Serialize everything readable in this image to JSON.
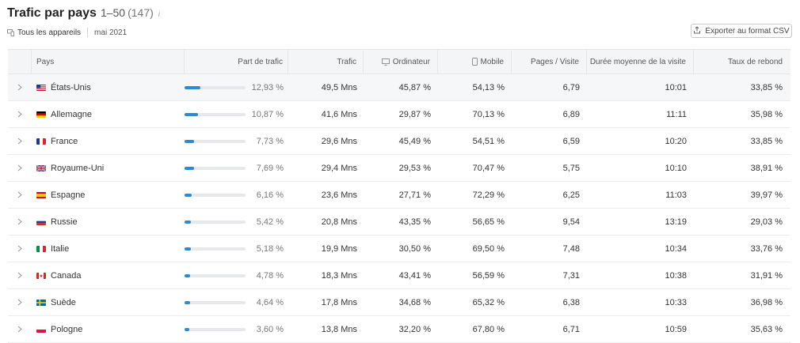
{
  "header": {
    "title": "Trafic par pays",
    "range": "1–50",
    "count": "(147)",
    "info_icon": "i",
    "device_filter": "Tous les appareils",
    "date": "mai 2021",
    "export_label": "Exporter au format CSV"
  },
  "columns": {
    "pays": "Pays",
    "part": "Part de trafic",
    "trafic": "Trafic",
    "ordinateur": "Ordinateur",
    "mobile": "Mobile",
    "pages": "Pages / Visite",
    "duree": "Durée moyenne de la visite",
    "rebond": "Taux de rebond"
  },
  "rows": [
    {
      "country": "États-Unis",
      "flag": "us",
      "share": "12,93 %",
      "share_pct": 12.93,
      "traffic": "49,5 Mns",
      "desktop": "45,87 %",
      "mobile": "54,13 %",
      "pages": "6,79",
      "duration": "10:01",
      "bounce": "33,85 %"
    },
    {
      "country": "Allemagne",
      "flag": "de",
      "share": "10,87 %",
      "share_pct": 10.87,
      "traffic": "41,6 Mns",
      "desktop": "29,87 %",
      "mobile": "70,13 %",
      "pages": "6,89",
      "duration": "11:11",
      "bounce": "35,98 %"
    },
    {
      "country": "France",
      "flag": "fr",
      "share": "7,73 %",
      "share_pct": 7.73,
      "traffic": "29,6 Mns",
      "desktop": "45,49 %",
      "mobile": "54,51 %",
      "pages": "6,59",
      "duration": "10:20",
      "bounce": "33,85 %"
    },
    {
      "country": "Royaume-Uni",
      "flag": "gb",
      "share": "7,69 %",
      "share_pct": 7.69,
      "traffic": "29,4 Mns",
      "desktop": "29,53 %",
      "mobile": "70,47 %",
      "pages": "5,75",
      "duration": "10:10",
      "bounce": "38,91 %"
    },
    {
      "country": "Espagne",
      "flag": "es",
      "share": "6,16 %",
      "share_pct": 6.16,
      "traffic": "23,6 Mns",
      "desktop": "27,71 %",
      "mobile": "72,29 %",
      "pages": "6,25",
      "duration": "11:03",
      "bounce": "39,97 %"
    },
    {
      "country": "Russie",
      "flag": "ru",
      "share": "5,42 %",
      "share_pct": 5.42,
      "traffic": "20,8 Mns",
      "desktop": "43,35 %",
      "mobile": "56,65 %",
      "pages": "9,54",
      "duration": "13:19",
      "bounce": "29,03 %"
    },
    {
      "country": "Italie",
      "flag": "it",
      "share": "5,18 %",
      "share_pct": 5.18,
      "traffic": "19,9 Mns",
      "desktop": "30,50 %",
      "mobile": "69,50 %",
      "pages": "7,48",
      "duration": "10:34",
      "bounce": "33,76 %"
    },
    {
      "country": "Canada",
      "flag": "ca",
      "share": "4,78 %",
      "share_pct": 4.78,
      "traffic": "18,3 Mns",
      "desktop": "43,41 %",
      "mobile": "56,59 %",
      "pages": "7,31",
      "duration": "10:38",
      "bounce": "31,91 %"
    },
    {
      "country": "Suède",
      "flag": "se",
      "share": "4,64 %",
      "share_pct": 4.64,
      "traffic": "17,8 Mns",
      "desktop": "34,68 %",
      "mobile": "65,32 %",
      "pages": "6,38",
      "duration": "10:33",
      "bounce": "36,98 %"
    },
    {
      "country": "Pologne",
      "flag": "pl",
      "share": "3,60 %",
      "share_pct": 3.6,
      "traffic": "13,8 Mns",
      "desktop": "32,20 %",
      "mobile": "67,80 %",
      "pages": "6,71",
      "duration": "10:59",
      "bounce": "35,63 %"
    }
  ],
  "icons": {
    "expand": "chevron-right-icon",
    "device": "devices-icon",
    "export": "export-icon",
    "desktop": "desktop-icon",
    "mobile": "mobile-icon"
  },
  "colors": {
    "bar_fill": "#2b8ad8",
    "bar_track": "#e6e8ec"
  }
}
